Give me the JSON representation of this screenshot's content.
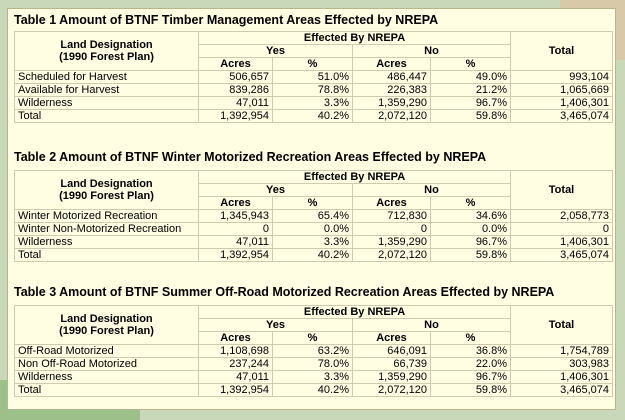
{
  "tables": [
    {
      "title": "Table 1 Amount of BTNF Timber Management Areas Effected by NREPA",
      "header": {
        "land_designation": "Land Designation",
        "forest_plan": "(1990 Forest Plan)",
        "effected": "Effected By NREPA",
        "yes": "Yes",
        "no": "No",
        "total": "Total",
        "acres_yes": "Acres",
        "pct_yes": "%",
        "acres_no": "Acres",
        "pct_no": "%"
      },
      "rows": [
        [
          "Scheduled for Harvest",
          "506,657",
          "51.0%",
          "486,447",
          "49.0%",
          "993,104"
        ],
        [
          "Available for Harvest",
          "839,286",
          "78.8%",
          "226,383",
          "21.2%",
          "1,065,669"
        ],
        [
          "Wilderness",
          "47,011",
          "3.3%",
          "1,359,290",
          "96.7%",
          "1,406,301"
        ],
        [
          "Total",
          "1,392,954",
          "40.2%",
          "2,072,120",
          "59.8%",
          "3,465,074"
        ]
      ]
    },
    {
      "title": "Table 2 Amount of BTNF Winter Motorized Recreation Areas Effected by NREPA",
      "header": {
        "land_designation": "Land Designation",
        "forest_plan": "(1990 Forest Plan)",
        "effected": "Effected By NREPA",
        "yes": "Yes",
        "no": "No",
        "total": "Total",
        "acres_yes": "Acres",
        "pct_yes": "%",
        "acres_no": "Acres",
        "pct_no": "%"
      },
      "rows": [
        [
          "Winter Motorized Recreation",
          "1,345,943",
          "65.4%",
          "712,830",
          "34.6%",
          "2,058,773"
        ],
        [
          "Winter Non-Motorized Recreation",
          "0",
          "0.0%",
          "0",
          "0.0%",
          "0"
        ],
        [
          "Wilderness",
          "47,011",
          "3.3%",
          "1,359,290",
          "96.7%",
          "1,406,301"
        ],
        [
          "Total",
          "1,392,954",
          "40.2%",
          "2,072,120",
          "59.8%",
          "3,465,074"
        ]
      ]
    },
    {
      "title": "Table 3 Amount of BTNF Summer Off-Road Motorized Recreation Areas Effected by NREPA",
      "header": {
        "land_designation": "Land Designation",
        "forest_plan": "(1990 Forest Plan)",
        "effected": "Effected By NREPA",
        "yes": "Yes",
        "no": "No",
        "total": "Total",
        "acres_yes": "Acres",
        "pct_yes": "%",
        "acres_no": "Acres",
        "pct_no": "%"
      },
      "rows": [
        [
          "Off-Road Motorized",
          "1,108,698",
          "63.2%",
          "646,091",
          "36.8%",
          "1,754,789"
        ],
        [
          "Non Off-Road Motorized",
          "237,244",
          "78.0%",
          "66,739",
          "22.0%",
          "303,983"
        ],
        [
          "Wilderness",
          "47,011",
          "3.3%",
          "1,359,290",
          "96.7%",
          "1,406,301"
        ],
        [
          "Total",
          "1,392,954",
          "40.2%",
          "2,072,120",
          "59.8%",
          "3,465,074"
        ]
      ]
    }
  ]
}
